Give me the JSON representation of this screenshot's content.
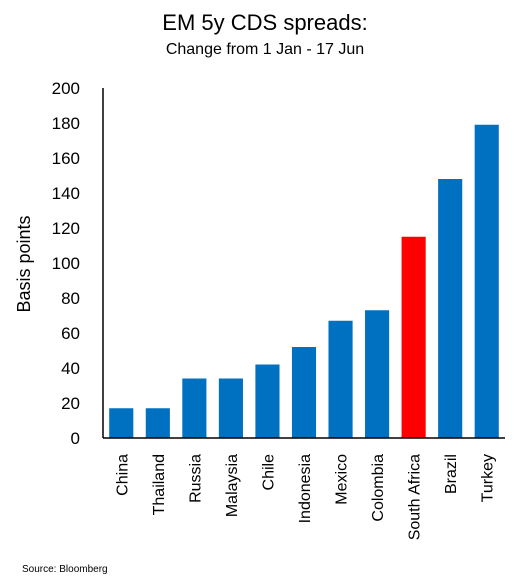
{
  "chart_data": {
    "type": "bar",
    "title": "EM 5y CDS spreads:",
    "subtitle": "Change from 1 Jan - 17 Jun",
    "xlabel": "",
    "ylabel": "Basis points",
    "ylim": [
      0,
      200
    ],
    "yticks": [
      0,
      20,
      40,
      60,
      80,
      100,
      120,
      140,
      160,
      180,
      200
    ],
    "categories": [
      "China",
      "Thailand",
      "Russia",
      "Malaysia",
      "Chile",
      "Indonesia",
      "Mexico",
      "Colombia",
      "South Africa",
      "Brazil",
      "Turkey"
    ],
    "values": [
      17,
      17,
      34,
      34,
      42,
      52,
      67,
      73,
      115,
      148,
      179
    ],
    "colors": [
      "#0070C0",
      "#0070C0",
      "#0070C0",
      "#0070C0",
      "#0070C0",
      "#0070C0",
      "#0070C0",
      "#0070C0",
      "#FF0000",
      "#0070C0",
      "#0070C0"
    ],
    "grid": false,
    "legend": "none"
  },
  "source": "Source: Bloomberg"
}
